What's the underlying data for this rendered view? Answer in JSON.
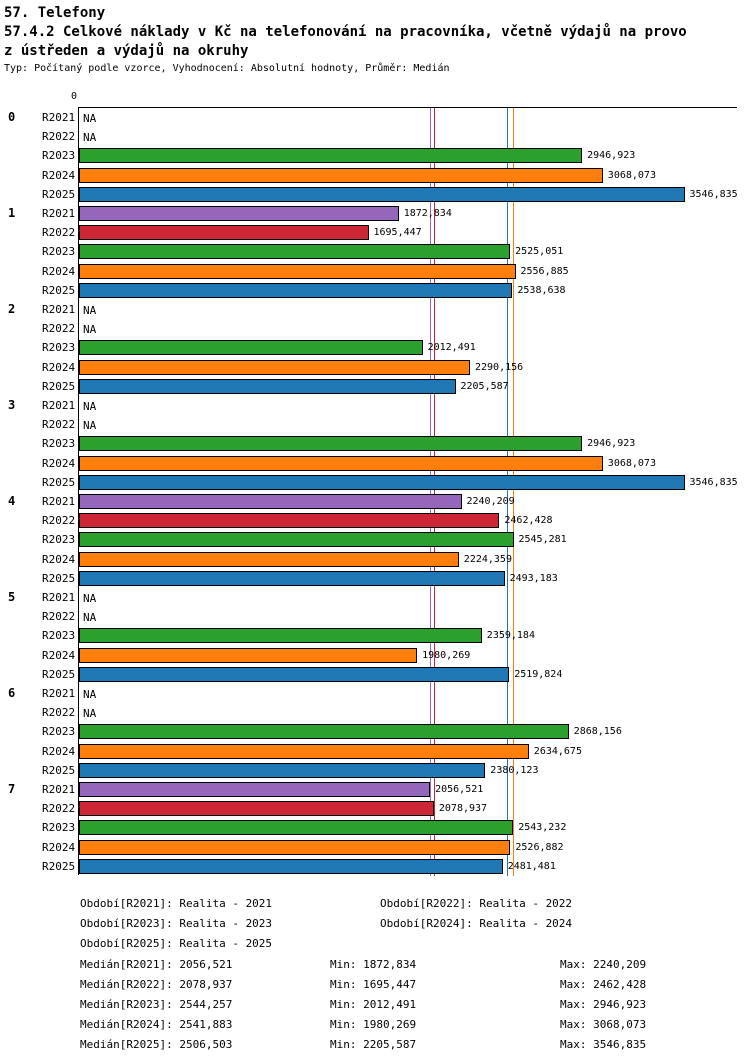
{
  "header": {
    "title": "57. Telefony",
    "subtitle_line1": "57.4.2 Celkové náklady v Kč na telefonování na pracovníka, včetně výdajů na provo",
    "subtitle_line2": "z ústředen a výdajů na okruhy",
    "meta": "Typ: Počítaný podle vzorce, Vyhodnocení: Absolutní hodnoty, Průměr: Medián"
  },
  "chart_data": {
    "type": "bar",
    "orientation": "horizontal",
    "title": "57.4.2 Celkové náklady v Kč na telefonování na pracovníka, včetně výdajů na provoz ústředen a výdajů na okruhy",
    "x_zero_label": "0",
    "xlim": [
      0,
      3860
    ],
    "grid": false,
    "legend_position": "bottom",
    "series_colors": {
      "R2021": "#9467bd",
      "R2022": "#cd2636",
      "R2023": "#2ca02c",
      "R2024": "#ff7f0e",
      "R2025": "#1f77b4"
    },
    "groups": [
      {
        "label": "0",
        "rows": [
          {
            "series": "R2021",
            "value": null,
            "label": "NA"
          },
          {
            "series": "R2022",
            "value": null,
            "label": "NA"
          },
          {
            "series": "R2023",
            "value": 2946.923,
            "label": "2946,923"
          },
          {
            "series": "R2024",
            "value": 3068.073,
            "label": "3068,073"
          },
          {
            "series": "R2025",
            "value": 3546.835,
            "label": "3546,835"
          }
        ]
      },
      {
        "label": "1",
        "rows": [
          {
            "series": "R2021",
            "value": 1872.834,
            "label": "1872,834"
          },
          {
            "series": "R2022",
            "value": 1695.447,
            "label": "1695,447"
          },
          {
            "series": "R2023",
            "value": 2525.051,
            "label": "2525,051"
          },
          {
            "series": "R2024",
            "value": 2556.885,
            "label": "2556,885"
          },
          {
            "series": "R2025",
            "value": 2538.638,
            "label": "2538,638"
          }
        ]
      },
      {
        "label": "2",
        "rows": [
          {
            "series": "R2021",
            "value": null,
            "label": "NA"
          },
          {
            "series": "R2022",
            "value": null,
            "label": "NA"
          },
          {
            "series": "R2023",
            "value": 2012.491,
            "label": "2012,491"
          },
          {
            "series": "R2024",
            "value": 2290.156,
            "label": "2290,156"
          },
          {
            "series": "R2025",
            "value": 2205.587,
            "label": "2205,587"
          }
        ]
      },
      {
        "label": "3",
        "rows": [
          {
            "series": "R2021",
            "value": null,
            "label": "NA"
          },
          {
            "series": "R2022",
            "value": null,
            "label": "NA"
          },
          {
            "series": "R2023",
            "value": 2946.923,
            "label": "2946,923"
          },
          {
            "series": "R2024",
            "value": 3068.073,
            "label": "3068,073"
          },
          {
            "series": "R2025",
            "value": 3546.835,
            "label": "3546,835"
          }
        ]
      },
      {
        "label": "4",
        "rows": [
          {
            "series": "R2021",
            "value": 2240.209,
            "label": "2240,209"
          },
          {
            "series": "R2022",
            "value": 2462.428,
            "label": "2462,428"
          },
          {
            "series": "R2023",
            "value": 2545.281,
            "label": "2545,281"
          },
          {
            "series": "R2024",
            "value": 2224.359,
            "label": "2224,359"
          },
          {
            "series": "R2025",
            "value": 2493.183,
            "label": "2493,183"
          }
        ]
      },
      {
        "label": "5",
        "rows": [
          {
            "series": "R2021",
            "value": null,
            "label": "NA"
          },
          {
            "series": "R2022",
            "value": null,
            "label": "NA"
          },
          {
            "series": "R2023",
            "value": 2359.184,
            "label": "2359,184"
          },
          {
            "series": "R2024",
            "value": 1980.269,
            "label": "1980,269"
          },
          {
            "series": "R2025",
            "value": 2519.824,
            "label": "2519,824"
          }
        ]
      },
      {
        "label": "6",
        "rows": [
          {
            "series": "R2021",
            "value": null,
            "label": "NA"
          },
          {
            "series": "R2022",
            "value": null,
            "label": "NA"
          },
          {
            "series": "R2023",
            "value": 2868.156,
            "label": "2868,156"
          },
          {
            "series": "R2024",
            "value": 2634.675,
            "label": "2634,675"
          },
          {
            "series": "R2025",
            "value": 2380.123,
            "label": "2380,123"
          }
        ]
      },
      {
        "label": "7",
        "rows": [
          {
            "series": "R2021",
            "value": 2056.521,
            "label": "2056,521"
          },
          {
            "series": "R2022",
            "value": 2078.937,
            "label": "2078,937"
          },
          {
            "series": "R2023",
            "value": 2543.232,
            "label": "2543,232"
          },
          {
            "series": "R2024",
            "value": 2526.882,
            "label": "2526,882"
          },
          {
            "series": "R2025",
            "value": 2481.481,
            "label": "2481,481"
          }
        ]
      }
    ],
    "median_lines": [
      {
        "series": "R2021",
        "value": 2056.521
      },
      {
        "series": "R2022",
        "value": 2078.937
      },
      {
        "series": "R2023",
        "value": 2544.257
      },
      {
        "series": "R2024",
        "value": 2541.883
      },
      {
        "series": "R2025",
        "value": 2506.503
      }
    ],
    "legend": [
      "Období[R2021]: Realita - 2021",
      "Období[R2022]: Realita - 2022",
      "Období[R2023]: Realita - 2023",
      "Období[R2024]: Realita - 2024",
      "Období[R2025]: Realita - 2025"
    ],
    "stats": [
      {
        "median": "Medián[R2021]: 2056,521",
        "min": "Min: 1872,834",
        "max": "Max: 2240,209"
      },
      {
        "median": "Medián[R2022]: 2078,937",
        "min": "Min: 1695,447",
        "max": "Max: 2462,428"
      },
      {
        "median": "Medián[R2023]: 2544,257",
        "min": "Min: 2012,491",
        "max": "Max: 2946,923"
      },
      {
        "median": "Medián[R2024]: 2541,883",
        "min": "Min: 1980,269",
        "max": "Max: 3068,073"
      },
      {
        "median": "Medián[R2025]: 2506,503",
        "min": "Min: 2205,587",
        "max": "Max: 3546,835"
      }
    ]
  }
}
